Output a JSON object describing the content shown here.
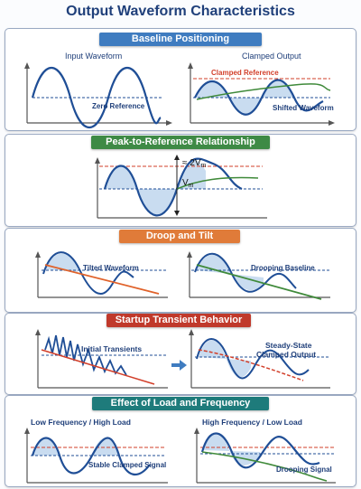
{
  "title": "Output Waveform Characteristics",
  "colors": {
    "navy": "#1f3f7a",
    "banner_blue": "#3f7cc0",
    "banner_green": "#3e8a45",
    "banner_orange": "#e07b39",
    "banner_red": "#c0392b",
    "banner_teal": "#1e7b7b",
    "wave": "#1f4e96",
    "fill": "#bcd3ec",
    "reference_dash": "#d23f2a",
    "orange_line": "#e0622a",
    "green_line": "#3f8a3a"
  },
  "sections": {
    "baseline": {
      "banner": "Baseline Positioning",
      "input_label": "Input Waveform",
      "zero_ref": "Zero Reference",
      "clamped_output": "Clamped Output",
      "clamped_ref": "Clamped Reference",
      "shifted": "Shifted Waveform"
    },
    "peak": {
      "banner": "Peak-to-Reference Relationship",
      "label_2vm": "≈ 2V",
      "sub_2vm": "m",
      "label_vm": "V",
      "sub_vm": "m"
    },
    "droop": {
      "banner": "Droop and Tilt",
      "tilted": "Tilted Waveform",
      "drooping": "Drooping Baseline"
    },
    "startup": {
      "banner": "Startup Transient Behavior",
      "initial": "Initial Transients",
      "steady_line1": "Steady-State",
      "steady_line2": "Clamped Output"
    },
    "load": {
      "banner": "Effect of Load and Frequency",
      "low_freq": "Low Frequency / High Load",
      "high_freq": "High Frequency / Low Load",
      "stable": "Stable Clamped Signal",
      "drooping_signal": "Drooping Signal"
    }
  }
}
